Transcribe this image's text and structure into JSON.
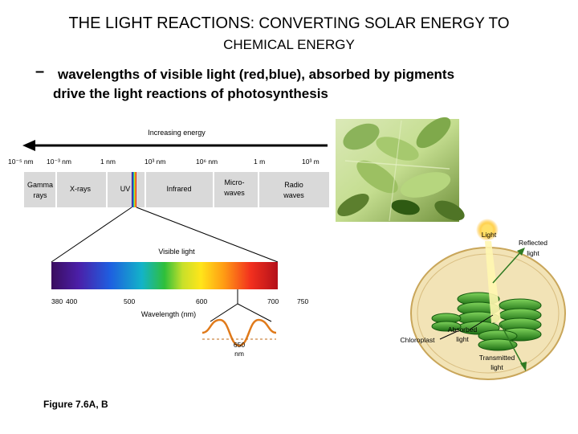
{
  "slide": {
    "title_main": "THE LIGHT REACTIONS",
    "title_rest": ": CONVERTING SOLAR ENERGY TO",
    "title_line2": "CHEMICAL ENERGY",
    "bullet_marker": "–",
    "bullet_line1": "wavelengths of visible light (red,blue), absorbed by pigments",
    "bullet_line2": "drive the light reactions of photosynthesis",
    "figure_caption": "Figure 7.6A, B"
  },
  "spectrum": {
    "arrow_label": "Increasing energy",
    "scale_labels": [
      "10⁻⁵ nm",
      "10⁻³ nm",
      "1 nm",
      "10³ nm",
      "10⁶ nm",
      "1 m",
      "10³ m"
    ],
    "regions": [
      "Gamma rays",
      "X-rays",
      "UV",
      "Infrared",
      "Micro-waves",
      "Radio waves"
    ],
    "visible_label": "Visible light",
    "wavelength_ticks": [
      "380",
      "400",
      "500",
      "600",
      "700",
      "750"
    ],
    "wavelength_axis_label": "Wavelength (nm)",
    "wave_label_value": "650",
    "wave_label_unit": "nm"
  },
  "chloroplast": {
    "light": "Light",
    "reflected": [
      "Reflected",
      "light"
    ],
    "absorbed": [
      "Absorbed",
      "light"
    ],
    "transmitted": [
      "Transmitted",
      "light"
    ],
    "chloroplast_label": "Chloroplast"
  },
  "colors": {
    "em_bar": "#d9d9d9",
    "arrow": "#000000",
    "leaf_dark": "#2e5a12",
    "leaf_light": "#b8d98a",
    "chloroplast_fill": "#f2e3b6",
    "thylakoid": "#3fa32a",
    "sun": "#ffcc33"
  }
}
